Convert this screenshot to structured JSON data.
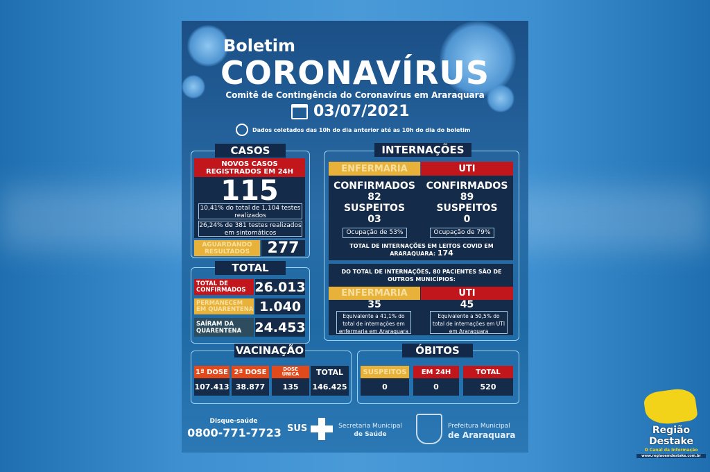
{
  "header": {
    "boletim": "Boletim",
    "title": "CORONAVÍRUS",
    "subtitle": "Comitê de Contingência do Coronavírus em Araraquara",
    "date": "03/07/2021",
    "note": "Dados coletados das 10h do dia anterior até as 10h do dia do boletim"
  },
  "casos": {
    "title": "CASOS",
    "novos_label": "NOVOS CASOS REGISTRADOS EM 24H",
    "novos_value": "115",
    "info1": "10,41% do total de 1.104 testes realizados",
    "info2": "26,24% de 381 testes realizados em sintomáticos",
    "aguardando_label": "AGUARDANDO RESULTADOS",
    "aguardando_value": "277"
  },
  "total": {
    "title": "TOTAL",
    "rows": [
      {
        "label": "TOTAL DE CONFIRMADOS",
        "value": "26.013"
      },
      {
        "label": "PERMANECEM EM QUARENTENA",
        "value": "1.040"
      },
      {
        "label": "SAÍRAM DA QUARENTENA",
        "value": "24.453"
      }
    ]
  },
  "internacoes": {
    "title": "INTERNAÇÕES",
    "enfermaria": {
      "label": "ENFERMARIA",
      "confirmados_label": "CONFIRMADOS",
      "confirmados": "82",
      "suspeitos_label": "SUSPEITOS",
      "suspeitos": "03",
      "ocupacao": "Ocupação de 53%"
    },
    "uti": {
      "label": "UTI",
      "confirmados_label": "CONFIRMADOS",
      "confirmados": "89",
      "suspeitos_label": "SUSPEITOS",
      "suspeitos": "0",
      "ocupacao": "Ocupação de 79%"
    },
    "total_label": "TOTAL DE INTERNAÇÕES EM LEITOS COVID EM ARARAQUARA:",
    "total_value": "174",
    "outros_label": "DO TOTAL DE INTERNAÇÕES, 80 PACIENTES SÃO DE OUTROS MUNICÍPIOS:",
    "outros_enf_label": "ENFERMARIA",
    "outros_enf_value": "35",
    "outros_enf_note": "Equivalente a 41,1% do total de internações em enfermaria em Araraquara",
    "outros_uti_label": "UTI",
    "outros_uti_value": "45",
    "outros_uti_note": "Equivalente a 50,5% do total de internações em UTI em Araraquara"
  },
  "vacinacao": {
    "title": "VACINAÇÃO",
    "cols": [
      {
        "label": "1ª DOSE",
        "value": "107.413"
      },
      {
        "label": "2ª DOSE",
        "value": "38.877"
      },
      {
        "label": "DOSE ÚNICA",
        "value": "135"
      },
      {
        "label": "TOTAL",
        "value": "146.425"
      }
    ]
  },
  "obitos": {
    "title": "ÓBITOS",
    "cols": [
      {
        "label": "SUSPEITOS",
        "value": "0"
      },
      {
        "label": "EM 24H",
        "value": "0"
      },
      {
        "label": "TOTAL",
        "value": "520"
      }
    ]
  },
  "footer": {
    "disque_label": "Disque-saúde",
    "disque_phone": "0800-771-7723",
    "sus": "SUS",
    "secretaria1": "Secretaria Municipal",
    "secretaria2": "de Saúde",
    "prefeitura1": "Prefeitura Municipal",
    "prefeitura2": "de Araraquara"
  },
  "watermark": {
    "brand1": "Região",
    "brand2": "Destake",
    "tagline": "O Canal da Informação",
    "url": "www.regiaoemdestake.com.br"
  },
  "colors": {
    "red": "#c0161c",
    "yellow": "#e8b13a",
    "orange": "#e24a1c",
    "dark": "#142b4a"
  }
}
